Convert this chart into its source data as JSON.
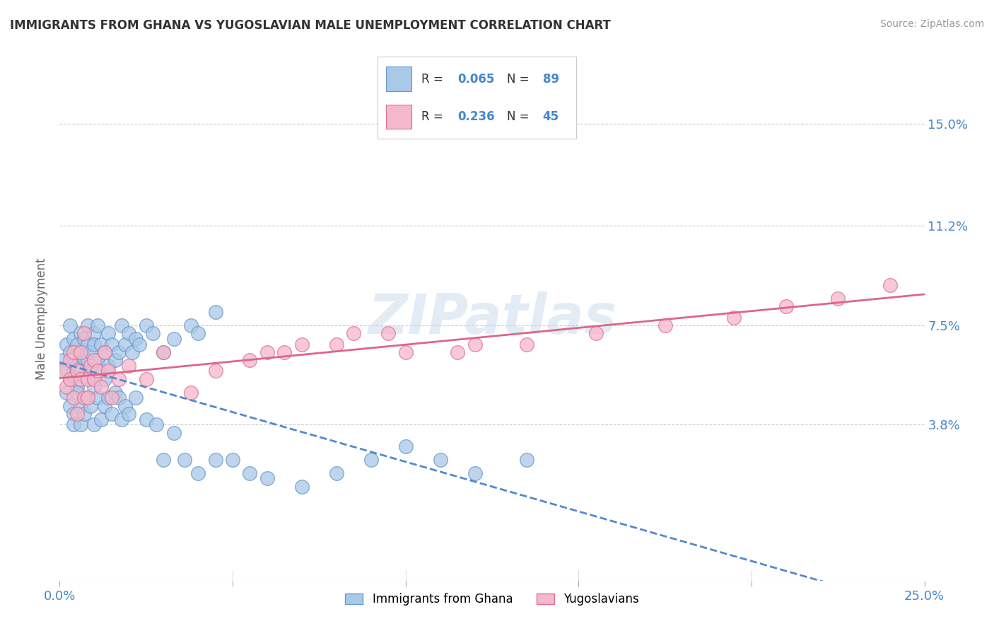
{
  "title": "IMMIGRANTS FROM GHANA VS YUGOSLAVIAN MALE UNEMPLOYMENT CORRELATION CHART",
  "source": "Source: ZipAtlas.com",
  "ylabel": "Male Unemployment",
  "xlim": [
    0.0,
    0.25
  ],
  "ylim": [
    -0.02,
    0.175
  ],
  "yticks": [
    0.038,
    0.075,
    0.112,
    0.15
  ],
  "yticklabels": [
    "3.8%",
    "7.5%",
    "11.2%",
    "15.0%"
  ],
  "xtick_left_label": "0.0%",
  "xtick_right_label": "25.0%",
  "series1_color": "#aac8e8",
  "series1_edge": "#6699cc",
  "series2_color": "#f5b8cc",
  "series2_edge": "#e07090",
  "trend1_color": "#5588cc",
  "trend2_color": "#dd6688",
  "watermark": "ZIPatlas",
  "background_color": "#ffffff",
  "grid_color": "#cccccc",
  "title_color": "#333333",
  "tick_color": "#4488cc",
  "series1_label": "Immigrants from Ghana",
  "series2_label": "Yugoslavians",
  "ghana_x": [
    0.001,
    0.002,
    0.002,
    0.003,
    0.003,
    0.003,
    0.004,
    0.004,
    0.004,
    0.005,
    0.005,
    0.005,
    0.006,
    0.006,
    0.006,
    0.007,
    0.007,
    0.007,
    0.008,
    0.008,
    0.008,
    0.009,
    0.009,
    0.01,
    0.01,
    0.01,
    0.011,
    0.011,
    0.012,
    0.012,
    0.013,
    0.013,
    0.014,
    0.014,
    0.015,
    0.016,
    0.017,
    0.018,
    0.019,
    0.02,
    0.021,
    0.022,
    0.023,
    0.025,
    0.027,
    0.03,
    0.033,
    0.038,
    0.04,
    0.045,
    0.002,
    0.003,
    0.004,
    0.004,
    0.005,
    0.006,
    0.006,
    0.007,
    0.008,
    0.009,
    0.01,
    0.01,
    0.011,
    0.012,
    0.013,
    0.014,
    0.015,
    0.016,
    0.017,
    0.018,
    0.019,
    0.02,
    0.022,
    0.025,
    0.028,
    0.03,
    0.033,
    0.036,
    0.04,
    0.045,
    0.05,
    0.055,
    0.06,
    0.07,
    0.08,
    0.09,
    0.1,
    0.11,
    0.12,
    0.135
  ],
  "ghana_y": [
    0.062,
    0.068,
    0.058,
    0.075,
    0.065,
    0.055,
    0.07,
    0.063,
    0.058,
    0.068,
    0.06,
    0.052,
    0.072,
    0.065,
    0.058,
    0.07,
    0.063,
    0.056,
    0.068,
    0.075,
    0.062,
    0.058,
    0.065,
    0.072,
    0.068,
    0.058,
    0.062,
    0.075,
    0.068,
    0.058,
    0.065,
    0.055,
    0.072,
    0.06,
    0.068,
    0.062,
    0.065,
    0.075,
    0.068,
    0.072,
    0.065,
    0.07,
    0.068,
    0.075,
    0.072,
    0.065,
    0.07,
    0.075,
    0.072,
    0.08,
    0.05,
    0.045,
    0.042,
    0.038,
    0.05,
    0.045,
    0.038,
    0.042,
    0.048,
    0.045,
    0.038,
    0.052,
    0.048,
    0.04,
    0.045,
    0.048,
    0.042,
    0.05,
    0.048,
    0.04,
    0.045,
    0.042,
    0.048,
    0.04,
    0.038,
    0.025,
    0.035,
    0.025,
    0.02,
    0.025,
    0.025,
    0.02,
    0.018,
    0.015,
    0.02,
    0.025,
    0.03,
    0.025,
    0.02,
    0.025
  ],
  "yugo_x": [
    0.001,
    0.002,
    0.003,
    0.003,
    0.004,
    0.004,
    0.005,
    0.005,
    0.006,
    0.006,
    0.007,
    0.007,
    0.008,
    0.008,
    0.009,
    0.01,
    0.01,
    0.011,
    0.012,
    0.013,
    0.014,
    0.015,
    0.017,
    0.02,
    0.025,
    0.03,
    0.038,
    0.045,
    0.055,
    0.065,
    0.08,
    0.095,
    0.115,
    0.135,
    0.155,
    0.175,
    0.195,
    0.21,
    0.225,
    0.24,
    0.06,
    0.07,
    0.085,
    0.1,
    0.12
  ],
  "yugo_y": [
    0.058,
    0.052,
    0.062,
    0.055,
    0.048,
    0.065,
    0.058,
    0.042,
    0.065,
    0.055,
    0.048,
    0.072,
    0.055,
    0.048,
    0.06,
    0.055,
    0.062,
    0.058,
    0.052,
    0.065,
    0.058,
    0.048,
    0.055,
    0.06,
    0.055,
    0.065,
    0.05,
    0.058,
    0.062,
    0.065,
    0.068,
    0.072,
    0.065,
    0.068,
    0.072,
    0.075,
    0.078,
    0.082,
    0.085,
    0.09,
    0.065,
    0.068,
    0.072,
    0.065,
    0.068
  ]
}
